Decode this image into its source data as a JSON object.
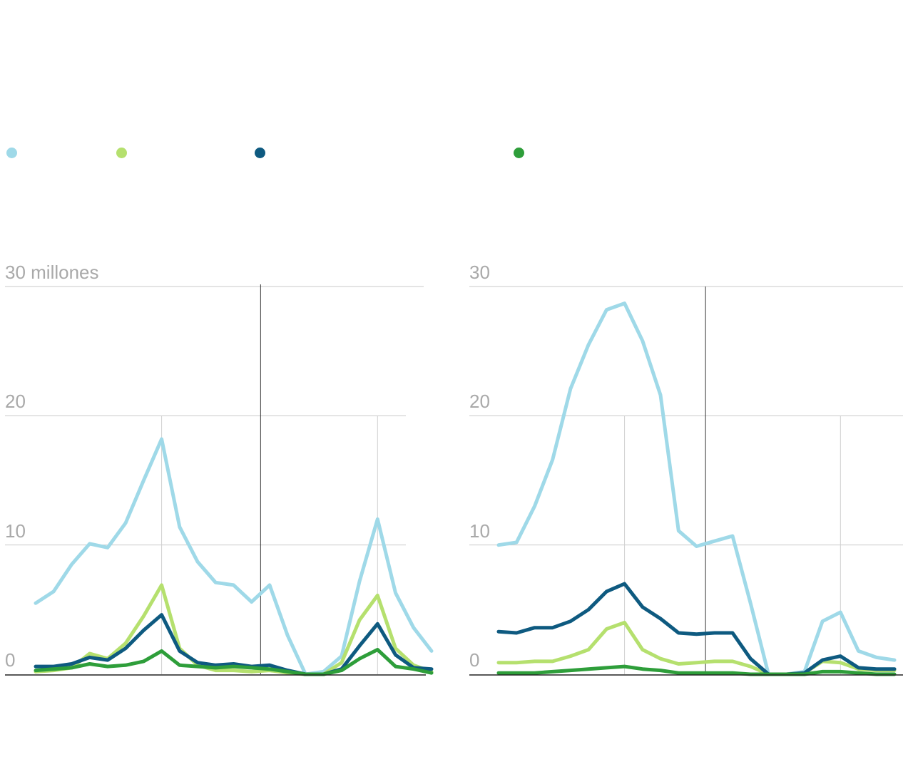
{
  "legend": [
    {
      "color": "#9fd9e8"
    },
    {
      "color": "#b5e06e"
    },
    {
      "color": "#0e5a80"
    },
    {
      "color": "#2e9e3a"
    }
  ],
  "chart_data": [
    {
      "type": "line",
      "x": [
        0,
        1,
        2,
        3,
        4,
        5,
        6,
        7,
        8,
        9,
        10,
        11,
        12,
        13,
        14,
        15,
        16,
        17,
        18,
        19,
        20,
        21,
        22
      ],
      "ylim": [
        0,
        30
      ],
      "yticks": [
        "30 millones",
        "20",
        "10",
        "0"
      ],
      "grid": true,
      "markers_x": [
        7,
        12.5,
        19
      ],
      "series": [
        {
          "color": "#9fd9e8",
          "values": [
            5.5,
            6.4,
            8.5,
            10.1,
            9.8,
            11.7,
            15.0,
            18.2,
            11.4,
            8.7,
            7.1,
            6.9,
            5.6,
            6.9,
            3.0,
            0.0,
            0.2,
            1.4,
            7.2,
            12.0,
            6.3,
            3.6,
            1.8
          ]
        },
        {
          "color": "#b5e06e",
          "values": [
            0.2,
            0.3,
            0.5,
            1.6,
            1.2,
            2.4,
            4.5,
            6.9,
            2.0,
            0.7,
            0.3,
            0.3,
            0.2,
            0.3,
            0.1,
            0.0,
            0.0,
            0.9,
            4.2,
            6.1,
            2.0,
            0.7,
            0.2
          ]
        },
        {
          "color": "#0e5a80",
          "values": [
            0.6,
            0.6,
            0.8,
            1.3,
            1.1,
            2.0,
            3.4,
            4.6,
            1.8,
            0.9,
            0.7,
            0.8,
            0.6,
            0.7,
            0.3,
            0.0,
            0.0,
            0.4,
            2.2,
            3.9,
            1.5,
            0.5,
            0.4
          ]
        },
        {
          "color": "#2e9e3a",
          "values": [
            0.3,
            0.4,
            0.5,
            0.8,
            0.6,
            0.7,
            1.0,
            1.8,
            0.7,
            0.6,
            0.5,
            0.6,
            0.5,
            0.4,
            0.2,
            0.0,
            0.0,
            0.3,
            1.2,
            1.9,
            0.6,
            0.4,
            0.1
          ]
        }
      ]
    },
    {
      "type": "line",
      "x": [
        0,
        1,
        2,
        3,
        4,
        5,
        6,
        7,
        8,
        9,
        10,
        11,
        12,
        13,
        14,
        15,
        16,
        17,
        18,
        19,
        20,
        21,
        22
      ],
      "ylim": [
        0,
        30
      ],
      "yticks": [
        "30",
        "20",
        "10",
        "0"
      ],
      "grid": true,
      "markers_x": [
        7,
        11.5,
        19
      ],
      "series": [
        {
          "color": "#9fd9e8",
          "values": [
            10.0,
            10.2,
            13.0,
            16.6,
            22.1,
            25.5,
            28.2,
            28.7,
            25.8,
            21.6,
            11.1,
            9.9,
            10.3,
            10.7,
            5.5,
            0.0,
            0.0,
            0.2,
            4.1,
            4.8,
            1.8,
            1.3,
            1.1
          ]
        },
        {
          "color": "#b5e06e",
          "values": [
            0.9,
            0.9,
            1.0,
            1.0,
            1.4,
            1.9,
            3.5,
            4.0,
            1.9,
            1.2,
            0.8,
            0.9,
            1.0,
            1.0,
            0.6,
            0.0,
            0.0,
            0.1,
            1.0,
            0.9,
            0.4,
            0.3,
            0.3
          ]
        },
        {
          "color": "#0e5a80",
          "values": [
            3.3,
            3.2,
            3.6,
            3.6,
            4.1,
            5.0,
            6.4,
            7.0,
            5.2,
            4.3,
            3.2,
            3.1,
            3.2,
            3.2,
            1.2,
            0.0,
            0.0,
            0.1,
            1.1,
            1.4,
            0.5,
            0.4,
            0.4
          ]
        },
        {
          "color": "#2e9e3a",
          "values": [
            0.1,
            0.1,
            0.1,
            0.2,
            0.3,
            0.4,
            0.5,
            0.6,
            0.4,
            0.3,
            0.1,
            0.1,
            0.1,
            0.1,
            0.0,
            0.0,
            0.0,
            0.0,
            0.2,
            0.2,
            0.1,
            0.0,
            0.0
          ]
        }
      ]
    }
  ]
}
